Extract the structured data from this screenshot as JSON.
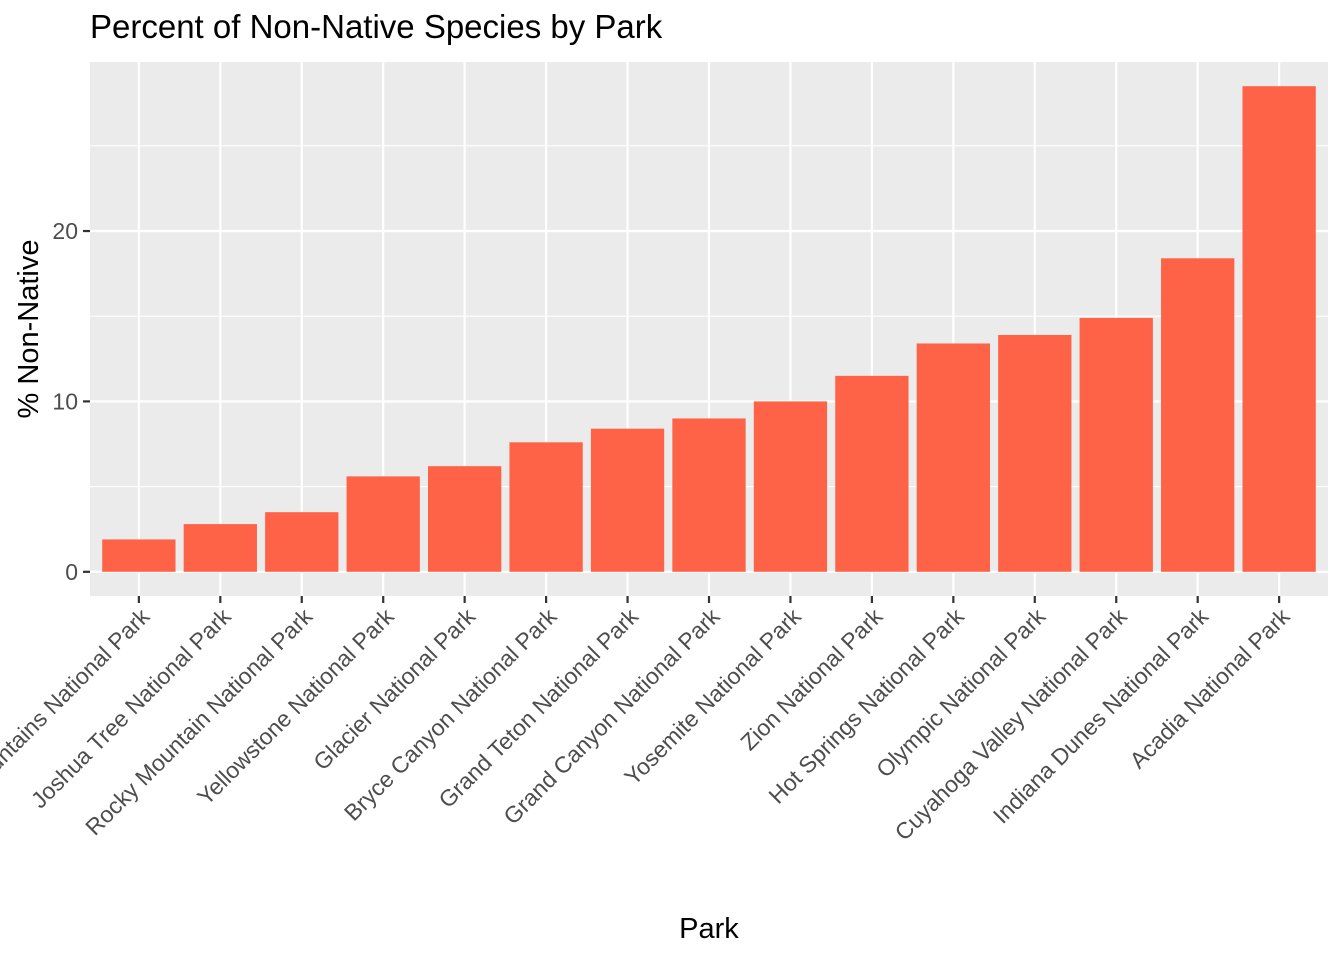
{
  "chart_data": {
    "type": "bar",
    "title": "Percent of Non-Native Species by Park",
    "xlabel": "Park",
    "ylabel": "% Non-Native",
    "categories": [
      "Great Smoky Mountains National Park",
      "Joshua Tree National Park",
      "Rocky Mountain National Park",
      "Yellowstone National Park",
      "Glacier National Park",
      "Bryce Canyon National Park",
      "Grand Teton National Park",
      "Grand Canyon National Park",
      "Yosemite National Park",
      "Zion National Park",
      "Hot Springs National Park",
      "Olympic National Park",
      "Cuyahoga Valley National Park",
      "Indiana Dunes National Park",
      "Acadia National Park"
    ],
    "values": [
      1.9,
      2.8,
      3.5,
      5.6,
      6.2,
      7.6,
      8.4,
      9.0,
      10.0,
      11.5,
      13.4,
      13.9,
      14.9,
      18.4,
      28.5
    ],
    "yticks": [
      0,
      10,
      20
    ],
    "ylim": [
      -1.42,
      29.92
    ],
    "grid": true,
    "bar_color": "#FF6347",
    "panel_color": "#EBEBEB",
    "grid_color": "#FFFFFF"
  }
}
